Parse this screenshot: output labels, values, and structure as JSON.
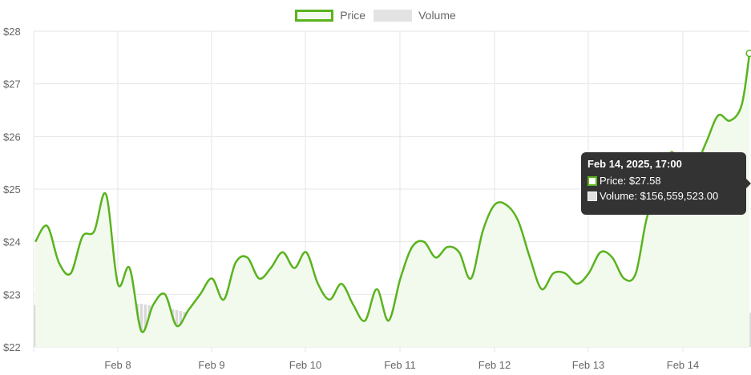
{
  "legend": {
    "price_label": "Price",
    "volume_label": "Volume"
  },
  "tooltip": {
    "title": "Feb 14, 2025, 17:00",
    "price_text": "Price: $27.58",
    "volume_text": "Volume: $156,559,523.00"
  },
  "colors": {
    "price": "#5ab31e",
    "price_fill": "#f2faee",
    "volume": "#d9d9d9",
    "grid": "#e6e6e6",
    "tooltip_bg": "#333333"
  },
  "chart_data": {
    "type": "line",
    "title": "",
    "xlabel": "",
    "ylabel": "",
    "ylim": [
      22,
      28
    ],
    "y_ticks": [
      "$22",
      "$23",
      "$24",
      "$25",
      "$26",
      "$27",
      "$28"
    ],
    "x_ticks": [
      "Feb 8",
      "Feb 9",
      "Feb 10",
      "Feb 11",
      "Feb 12",
      "Feb 13",
      "Feb 14"
    ],
    "grid": true,
    "legend_position": "top-center",
    "series": [
      {
        "name": "Price",
        "x": [
          "Feb 7, 03:00",
          "Feb 7, 06:00",
          "Feb 7, 09:00",
          "Feb 7, 12:00",
          "Feb 7, 15:00",
          "Feb 7, 18:00",
          "Feb 7, 21:00",
          "Feb 8, 00:00",
          "Feb 8, 03:00",
          "Feb 8, 06:00",
          "Feb 8, 09:00",
          "Feb 8, 12:00",
          "Feb 8, 15:00",
          "Feb 8, 18:00",
          "Feb 8, 21:00",
          "Feb 9, 00:00",
          "Feb 9, 03:00",
          "Feb 9, 06:00",
          "Feb 9, 09:00",
          "Feb 9, 12:00",
          "Feb 9, 15:00",
          "Feb 9, 18:00",
          "Feb 9, 21:00",
          "Feb 10, 00:00",
          "Feb 10, 03:00",
          "Feb 10, 06:00",
          "Feb 10, 09:00",
          "Feb 10, 12:00",
          "Feb 10, 15:00",
          "Feb 10, 18:00",
          "Feb 10, 21:00",
          "Feb 11, 00:00",
          "Feb 11, 03:00",
          "Feb 11, 06:00",
          "Feb 11, 09:00",
          "Feb 11, 12:00",
          "Feb 11, 15:00",
          "Feb 11, 18:00",
          "Feb 11, 21:00",
          "Feb 12, 00:00",
          "Feb 12, 03:00",
          "Feb 12, 06:00",
          "Feb 12, 09:00",
          "Feb 12, 12:00",
          "Feb 12, 15:00",
          "Feb 12, 18:00",
          "Feb 12, 21:00",
          "Feb 13, 00:00",
          "Feb 13, 03:00",
          "Feb 13, 06:00",
          "Feb 13, 09:00",
          "Feb 13, 12:00",
          "Feb 13, 15:00",
          "Feb 13, 18:00",
          "Feb 13, 21:00",
          "Feb 14, 00:00",
          "Feb 14, 03:00",
          "Feb 14, 06:00",
          "Feb 14, 09:00",
          "Feb 14, 12:00",
          "Feb 14, 15:00",
          "Feb 14, 17:00"
        ],
        "values": [
          24.0,
          24.3,
          23.6,
          23.4,
          24.1,
          24.2,
          24.9,
          23.2,
          23.5,
          22.3,
          22.8,
          23.0,
          22.4,
          22.7,
          23.0,
          23.3,
          22.9,
          23.6,
          23.7,
          23.3,
          23.5,
          23.8,
          23.5,
          23.8,
          23.2,
          22.9,
          23.2,
          22.8,
          22.5,
          23.1,
          22.5,
          23.3,
          23.9,
          24.0,
          23.7,
          23.9,
          23.8,
          23.3,
          24.2,
          24.7,
          24.7,
          24.4,
          23.7,
          23.1,
          23.4,
          23.4,
          23.2,
          23.4,
          23.8,
          23.7,
          23.3,
          23.4,
          24.5,
          24.8,
          25.7,
          25.2,
          25.4,
          25.9,
          26.4,
          26.3,
          26.6,
          27.58
        ]
      },
      {
        "name": "Volume",
        "x": [
          "Feb 7, 03:00",
          "Feb 7, 12:00",
          "Feb 7, 21:00",
          "Feb 8, 06:00",
          "Feb 8, 15:00",
          "Feb 9, 00:00",
          "Feb 9, 09:00",
          "Feb 9, 18:00",
          "Feb 10, 03:00",
          "Feb 10, 12:00",
          "Feb 10, 21:00",
          "Feb 11, 06:00",
          "Feb 11, 15:00",
          "Feb 12, 00:00",
          "Feb 12, 09:00",
          "Feb 12, 18:00",
          "Feb 13, 03:00",
          "Feb 13, 12:00",
          "Feb 13, 21:00",
          "Feb 14, 06:00",
          "Feb 14, 17:00"
        ],
        "values": [
          22.8,
          22.82,
          22.85,
          22.82,
          22.7,
          22.55,
          22.42,
          22.4,
          22.35,
          22.3,
          22.35,
          22.42,
          22.45,
          22.48,
          22.52,
          22.45,
          22.6,
          22.72,
          22.75,
          22.62,
          22.65
        ]
      }
    ]
  }
}
